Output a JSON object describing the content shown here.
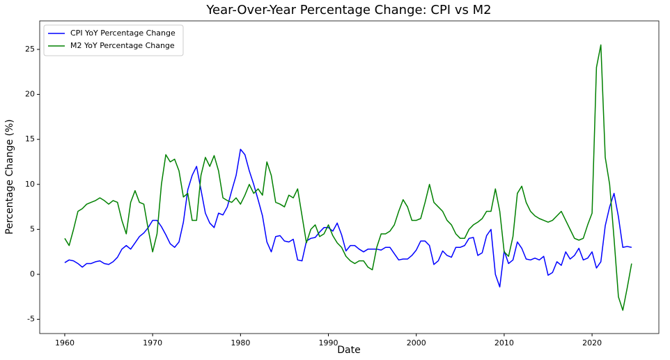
{
  "chart_data": {
    "type": "line",
    "title": "Year-Over-Year Percentage Change: CPI vs M2",
    "x_label": "Date",
    "y_label": "Percentage Change (%)",
    "x": [
      1960,
      1960.5,
      1961,
      1961.5,
      1962,
      1962.5,
      1963,
      1963.5,
      1964,
      1964.5,
      1965,
      1965.5,
      1966,
      1966.5,
      1967,
      1967.5,
      1968,
      1968.5,
      1969,
      1969.5,
      1970,
      1970.5,
      1971,
      1971.5,
      1972,
      1972.5,
      1973,
      1973.5,
      1974,
      1974.5,
      1975,
      1975.5,
      1976,
      1976.5,
      1977,
      1977.5,
      1978,
      1978.5,
      1979,
      1979.5,
      1980,
      1980.5,
      1981,
      1981.5,
      1982,
      1982.5,
      1983,
      1983.5,
      1984,
      1984.5,
      1985,
      1985.5,
      1986,
      1986.5,
      1987,
      1987.5,
      1988,
      1988.5,
      1989,
      1989.5,
      1990,
      1990.5,
      1991,
      1991.5,
      1992,
      1992.5,
      1993,
      1993.5,
      1994,
      1994.5,
      1995,
      1995.5,
      1996,
      1996.5,
      1997,
      1997.5,
      1998,
      1998.5,
      1999,
      1999.5,
      2000,
      2000.5,
      2001,
      2001.5,
      2002,
      2002.5,
      2003,
      2003.5,
      2004,
      2004.5,
      2005,
      2005.5,
      2006,
      2006.5,
      2007,
      2007.5,
      2008,
      2008.5,
      2009,
      2009.5,
      2010,
      2010.5,
      2011,
      2011.5,
      2012,
      2012.5,
      2013,
      2013.5,
      2014,
      2014.5,
      2015,
      2015.5,
      2016,
      2016.5,
      2017,
      2017.5,
      2018,
      2018.5,
      2019,
      2019.5,
      2020,
      2020.5,
      2021,
      2021.5,
      2022,
      2022.5,
      2023,
      2023.5,
      2024,
      2024.5
    ],
    "series": [
      {
        "name": "CPI YoY Percentage Change",
        "color": "#0000ff",
        "values": [
          1.3,
          1.6,
          1.5,
          1.2,
          0.8,
          1.2,
          1.2,
          1.4,
          1.5,
          1.2,
          1.1,
          1.4,
          1.9,
          2.8,
          3.2,
          2.8,
          3.5,
          4.2,
          4.6,
          5.2,
          6.0,
          6.0,
          5.3,
          4.4,
          3.4,
          3.0,
          3.6,
          5.8,
          9.4,
          11.0,
          12.0,
          9.4,
          6.8,
          5.7,
          5.2,
          6.8,
          6.6,
          7.5,
          9.3,
          11.0,
          13.9,
          13.3,
          11.5,
          10.0,
          8.3,
          6.5,
          3.6,
          2.5,
          4.2,
          4.3,
          3.7,
          3.6,
          3.9,
          1.6,
          1.5,
          3.7,
          4.0,
          4.1,
          4.7,
          5.2,
          5.2,
          4.8,
          5.7,
          4.4,
          2.6,
          3.2,
          3.2,
          2.8,
          2.5,
          2.8,
          2.8,
          2.8,
          2.7,
          3.0,
          3.0,
          2.3,
          1.6,
          1.7,
          1.7,
          2.1,
          2.7,
          3.7,
          3.7,
          3.2,
          1.1,
          1.5,
          2.6,
          2.1,
          1.9,
          3.0,
          3.0,
          3.2,
          4.0,
          4.1,
          2.1,
          2.4,
          4.3,
          5.0,
          0.0,
          -1.4,
          2.6,
          1.2,
          1.6,
          3.6,
          2.9,
          1.7,
          1.6,
          1.8,
          1.6,
          2.0,
          -0.1,
          0.2,
          1.4,
          1.0,
          2.5,
          1.7,
          2.1,
          2.9,
          1.6,
          1.8,
          2.5,
          0.7,
          1.4,
          5.4,
          7.5,
          9.0,
          6.4,
          3.0,
          3.1,
          3.0
        ]
      },
      {
        "name": "M2 YoY Percentage Change",
        "color": "#008000",
        "values": [
          4.0,
          3.2,
          5.0,
          7.0,
          7.3,
          7.8,
          8.0,
          8.2,
          8.5,
          8.2,
          7.8,
          8.2,
          8.0,
          6.0,
          4.5,
          8.0,
          9.3,
          8.0,
          7.8,
          5.0,
          2.5,
          4.5,
          10.0,
          13.3,
          12.5,
          12.8,
          11.5,
          8.6,
          9.0,
          6.0,
          6.0,
          11.0,
          13.0,
          12.0,
          13.2,
          11.5,
          8.5,
          8.2,
          8.0,
          8.5,
          7.8,
          8.8,
          10.0,
          9.0,
          9.5,
          8.8,
          12.5,
          11.0,
          8.0,
          7.8,
          7.5,
          8.8,
          8.5,
          9.5,
          6.5,
          3.5,
          5.0,
          5.5,
          4.2,
          4.5,
          5.5,
          4.3,
          3.5,
          3.0,
          2.0,
          1.5,
          1.2,
          1.5,
          1.5,
          0.8,
          0.5,
          3.0,
          4.5,
          4.5,
          4.8,
          5.5,
          7.0,
          8.3,
          7.5,
          6.0,
          6.0,
          6.2,
          8.0,
          10.0,
          8.0,
          7.5,
          7.0,
          6.0,
          5.5,
          4.5,
          4.0,
          4.0,
          5.0,
          5.5,
          5.8,
          6.2,
          7.0,
          7.0,
          9.5,
          7.0,
          2.5,
          2.0,
          4.2,
          9.0,
          9.8,
          8.0,
          7.0,
          6.5,
          6.2,
          6.0,
          5.8,
          6.0,
          6.5,
          7.0,
          6.0,
          5.0,
          4.0,
          3.8,
          4.0,
          5.5,
          6.8,
          23.0,
          25.5,
          13.0,
          10.0,
          4.0,
          -2.5,
          -4.0,
          -1.5,
          1.2
        ]
      }
    ],
    "xlim": [
      1957.15,
      2027.6
    ],
    "ylim": [
      -6.58,
      28.17
    ],
    "xticks": [
      1960,
      1970,
      1980,
      1990,
      2000,
      2010,
      2020
    ],
    "yticks": [
      -5,
      0,
      5,
      10,
      15,
      20,
      25
    ],
    "legend": "upper left",
    "grid": false
  }
}
